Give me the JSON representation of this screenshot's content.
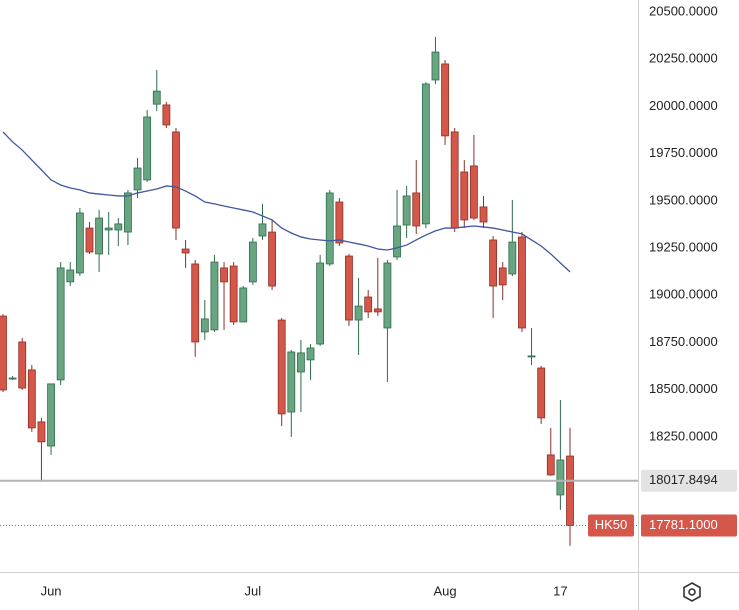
{
  "chart_data": {
    "type": "candlestick",
    "categories": [
      null,
      null,
      null,
      null,
      null,
      "Jun",
      null,
      null,
      null,
      null,
      null,
      null,
      null,
      null,
      null,
      null,
      null,
      null,
      null,
      null,
      null,
      null,
      null,
      null,
      null,
      null,
      "Jul",
      null,
      null,
      null,
      null,
      null,
      null,
      null,
      null,
      null,
      null,
      null,
      null,
      null,
      null,
      null,
      null,
      null,
      null,
      null,
      "Aug",
      null,
      null,
      null,
      null,
      null,
      null,
      null,
      null,
      null,
      null,
      null,
      "17",
      null
    ],
    "series": [
      {
        "name": "HK50",
        "up_color": "#6aa582",
        "down_color": "#d4574a",
        "open": [
          18890,
          18562,
          18753,
          18605,
          18330,
          18202,
          18552,
          19071,
          19118,
          19356,
          19219,
          19346,
          19346,
          19335,
          19558,
          19611,
          20012,
          20008,
          19865,
          19245,
          19166,
          18806,
          18817,
          19145,
          19155,
          18859,
          19071,
          19314,
          19335,
          18869,
          18382,
          18594,
          18658,
          18742,
          19166,
          19494,
          19208,
          18869,
          18991,
          18928,
          18827,
          19203,
          19372,
          19542,
          19378,
          20140,
          20225,
          19865,
          19653,
          19685,
          19468,
          19293,
          19145,
          19113,
          19309,
          18679,
          18615,
          18155,
          17943,
          18149
        ],
        "high": [
          18901,
          18573,
          18774,
          18631,
          18351,
          18531,
          19176,
          19176,
          19462,
          19388,
          19452,
          19441,
          19409,
          19558,
          19727,
          19981,
          20193,
          20024,
          19886,
          19293,
          19187,
          18975,
          19214,
          19176,
          19176,
          19049,
          19303,
          19484,
          19399,
          18880,
          18711,
          18764,
          18742,
          19214,
          19558,
          19515,
          19219,
          19092,
          19028,
          19198,
          19187,
          19558,
          19579,
          19716,
          20129,
          20368,
          20246,
          19886,
          19716,
          19849,
          19526,
          19314,
          19176,
          19505,
          19335,
          18827,
          18626,
          18298,
          18446,
          18298
        ],
        "low": [
          18488,
          18552,
          18499,
          18277,
          18012,
          18155,
          18525,
          19049,
          19102,
          19219,
          19124,
          19214,
          19261,
          19266,
          19515,
          19600,
          19975,
          19886,
          19293,
          19145,
          18674,
          18764,
          18806,
          18817,
          18843,
          18859,
          19055,
          19293,
          19028,
          18308,
          18250,
          18382,
          18552,
          18732,
          19155,
          19261,
          18838,
          18684,
          18880,
          18891,
          18541,
          19187,
          19304,
          19325,
          19356,
          20119,
          19796,
          19335,
          19356,
          19399,
          19356,
          18880,
          18975,
          19102,
          18806,
          18631,
          18319,
          18044,
          17864,
          17673
        ],
        "close": [
          18499,
          18562,
          18509,
          18298,
          18224,
          18531,
          19145,
          19134,
          19436,
          19229,
          19409,
          19356,
          19378,
          19542,
          19674,
          19944,
          20081,
          19902,
          19356,
          19224,
          18753,
          18875,
          19176,
          19071,
          18859,
          19039,
          19282,
          19378,
          19049,
          18372,
          18700,
          18695,
          18721,
          19171,
          19542,
          19277,
          18869,
          18943,
          18912,
          18912,
          19171,
          19367,
          19526,
          19367,
          20119,
          20288,
          19844,
          19356,
          19399,
          19409,
          19388,
          19049,
          19055,
          19282,
          18827,
          18679,
          18351,
          18049,
          18128,
          17781.1
        ]
      },
      {
        "type": "line",
        "color": "#4256a0",
        "values": [
          19865,
          19812,
          19769,
          19716,
          19664,
          19611,
          19584,
          19568,
          19558,
          19542,
          19536,
          19531,
          19526,
          19526,
          19542,
          19552,
          19563,
          19579,
          19574,
          19552,
          19526,
          19494,
          19484,
          19473,
          19462,
          19452,
          19441,
          19420,
          19399,
          19356,
          19330,
          19309,
          19298,
          19293,
          19288,
          19293,
          19282,
          19272,
          19261,
          19245,
          19240,
          19251,
          19266,
          19293,
          19319,
          19341,
          19356,
          19356,
          19362,
          19367,
          19362,
          19356,
          19346,
          19335,
          19325,
          19293,
          19261,
          19219,
          19171,
          19124
        ]
      }
    ],
    "hlines": [
      {
        "value": 18017.8494,
        "label": "18017.8494",
        "color": "#b4b4b4"
      },
      {
        "value": 17781.1,
        "label": "17781.1000",
        "name": "HK50",
        "color": "#d4574a"
      }
    ],
    "ylim": [
      17535,
      20563.5
    ],
    "yticks": [
      {
        "value": 20500,
        "label": "20500.0000"
      },
      {
        "value": 20250,
        "label": "20250.0000"
      },
      {
        "value": 20000,
        "label": "20000.0000"
      },
      {
        "value": 19750,
        "label": "19750.0000"
      },
      {
        "value": 19500,
        "label": "19500.0000"
      },
      {
        "value": 19250,
        "label": "19250.0000"
      },
      {
        "value": 19000,
        "label": "19000.0000"
      },
      {
        "value": 18750,
        "label": "18750.0000"
      },
      {
        "value": 18500,
        "label": "18500.0000"
      },
      {
        "value": 18250,
        "label": "18250.0000"
      }
    ],
    "grid": false
  }
}
